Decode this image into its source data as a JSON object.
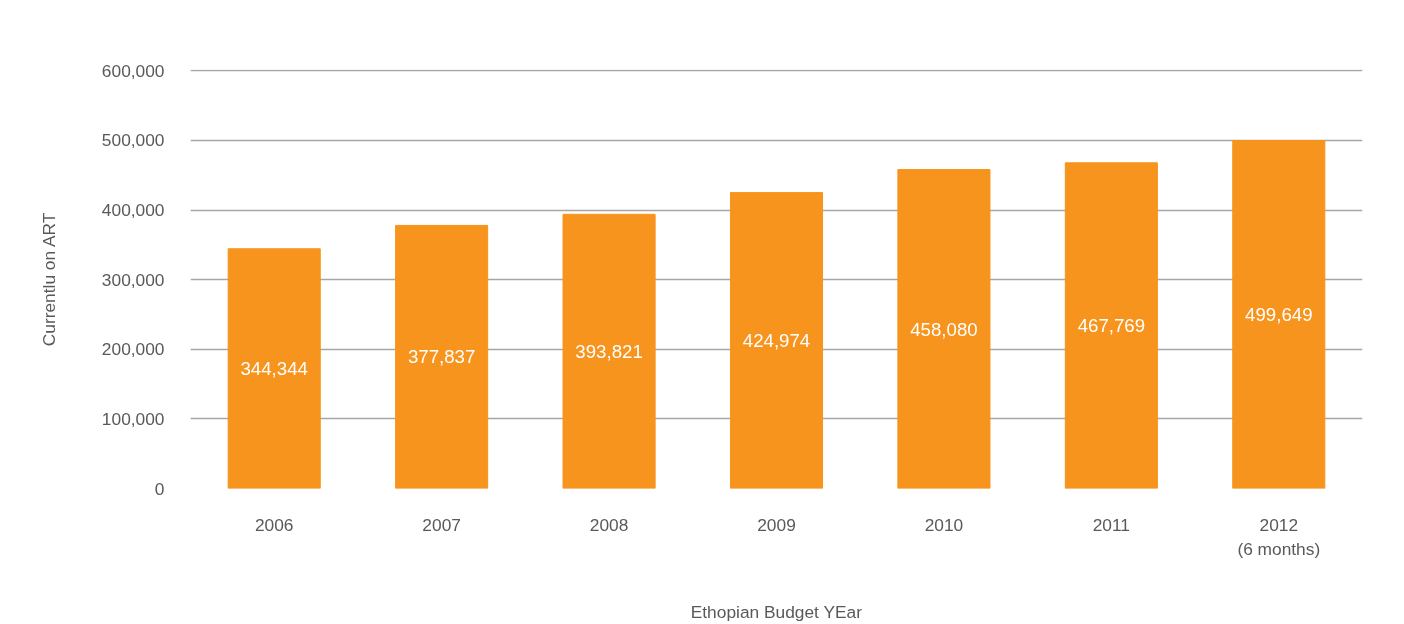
{
  "chart_data": {
    "type": "bar",
    "xlabel": "Ethopian Budget YEar",
    "ylabel": "Currentlu on ART",
    "categories": [
      "2006",
      "2007",
      "2008",
      "2009",
      "2010",
      "2011",
      "2012\n(6 months)"
    ],
    "values": [
      344344,
      377837,
      393821,
      424974,
      458080,
      467769,
      499649
    ],
    "value_labels": [
      "344,344",
      "377,837",
      "393,821",
      "424,974",
      "458,080",
      "467,769",
      "499,649"
    ],
    "color": "#f7941d",
    "grid": "y",
    "ylim": [
      0,
      600000
    ],
    "yticks": [
      0,
      {
        "value": 100000,
        "label": "100,000"
      },
      {
        "value": 200000,
        "label": "200,000"
      },
      {
        "value": 300000,
        "label": "300,000"
      },
      {
        "value": 400000,
        "label": "400,000"
      },
      {
        "value": 500000,
        "label": "500,000"
      },
      {
        "value": 600000,
        "label": "600,000"
      }
    ]
  }
}
